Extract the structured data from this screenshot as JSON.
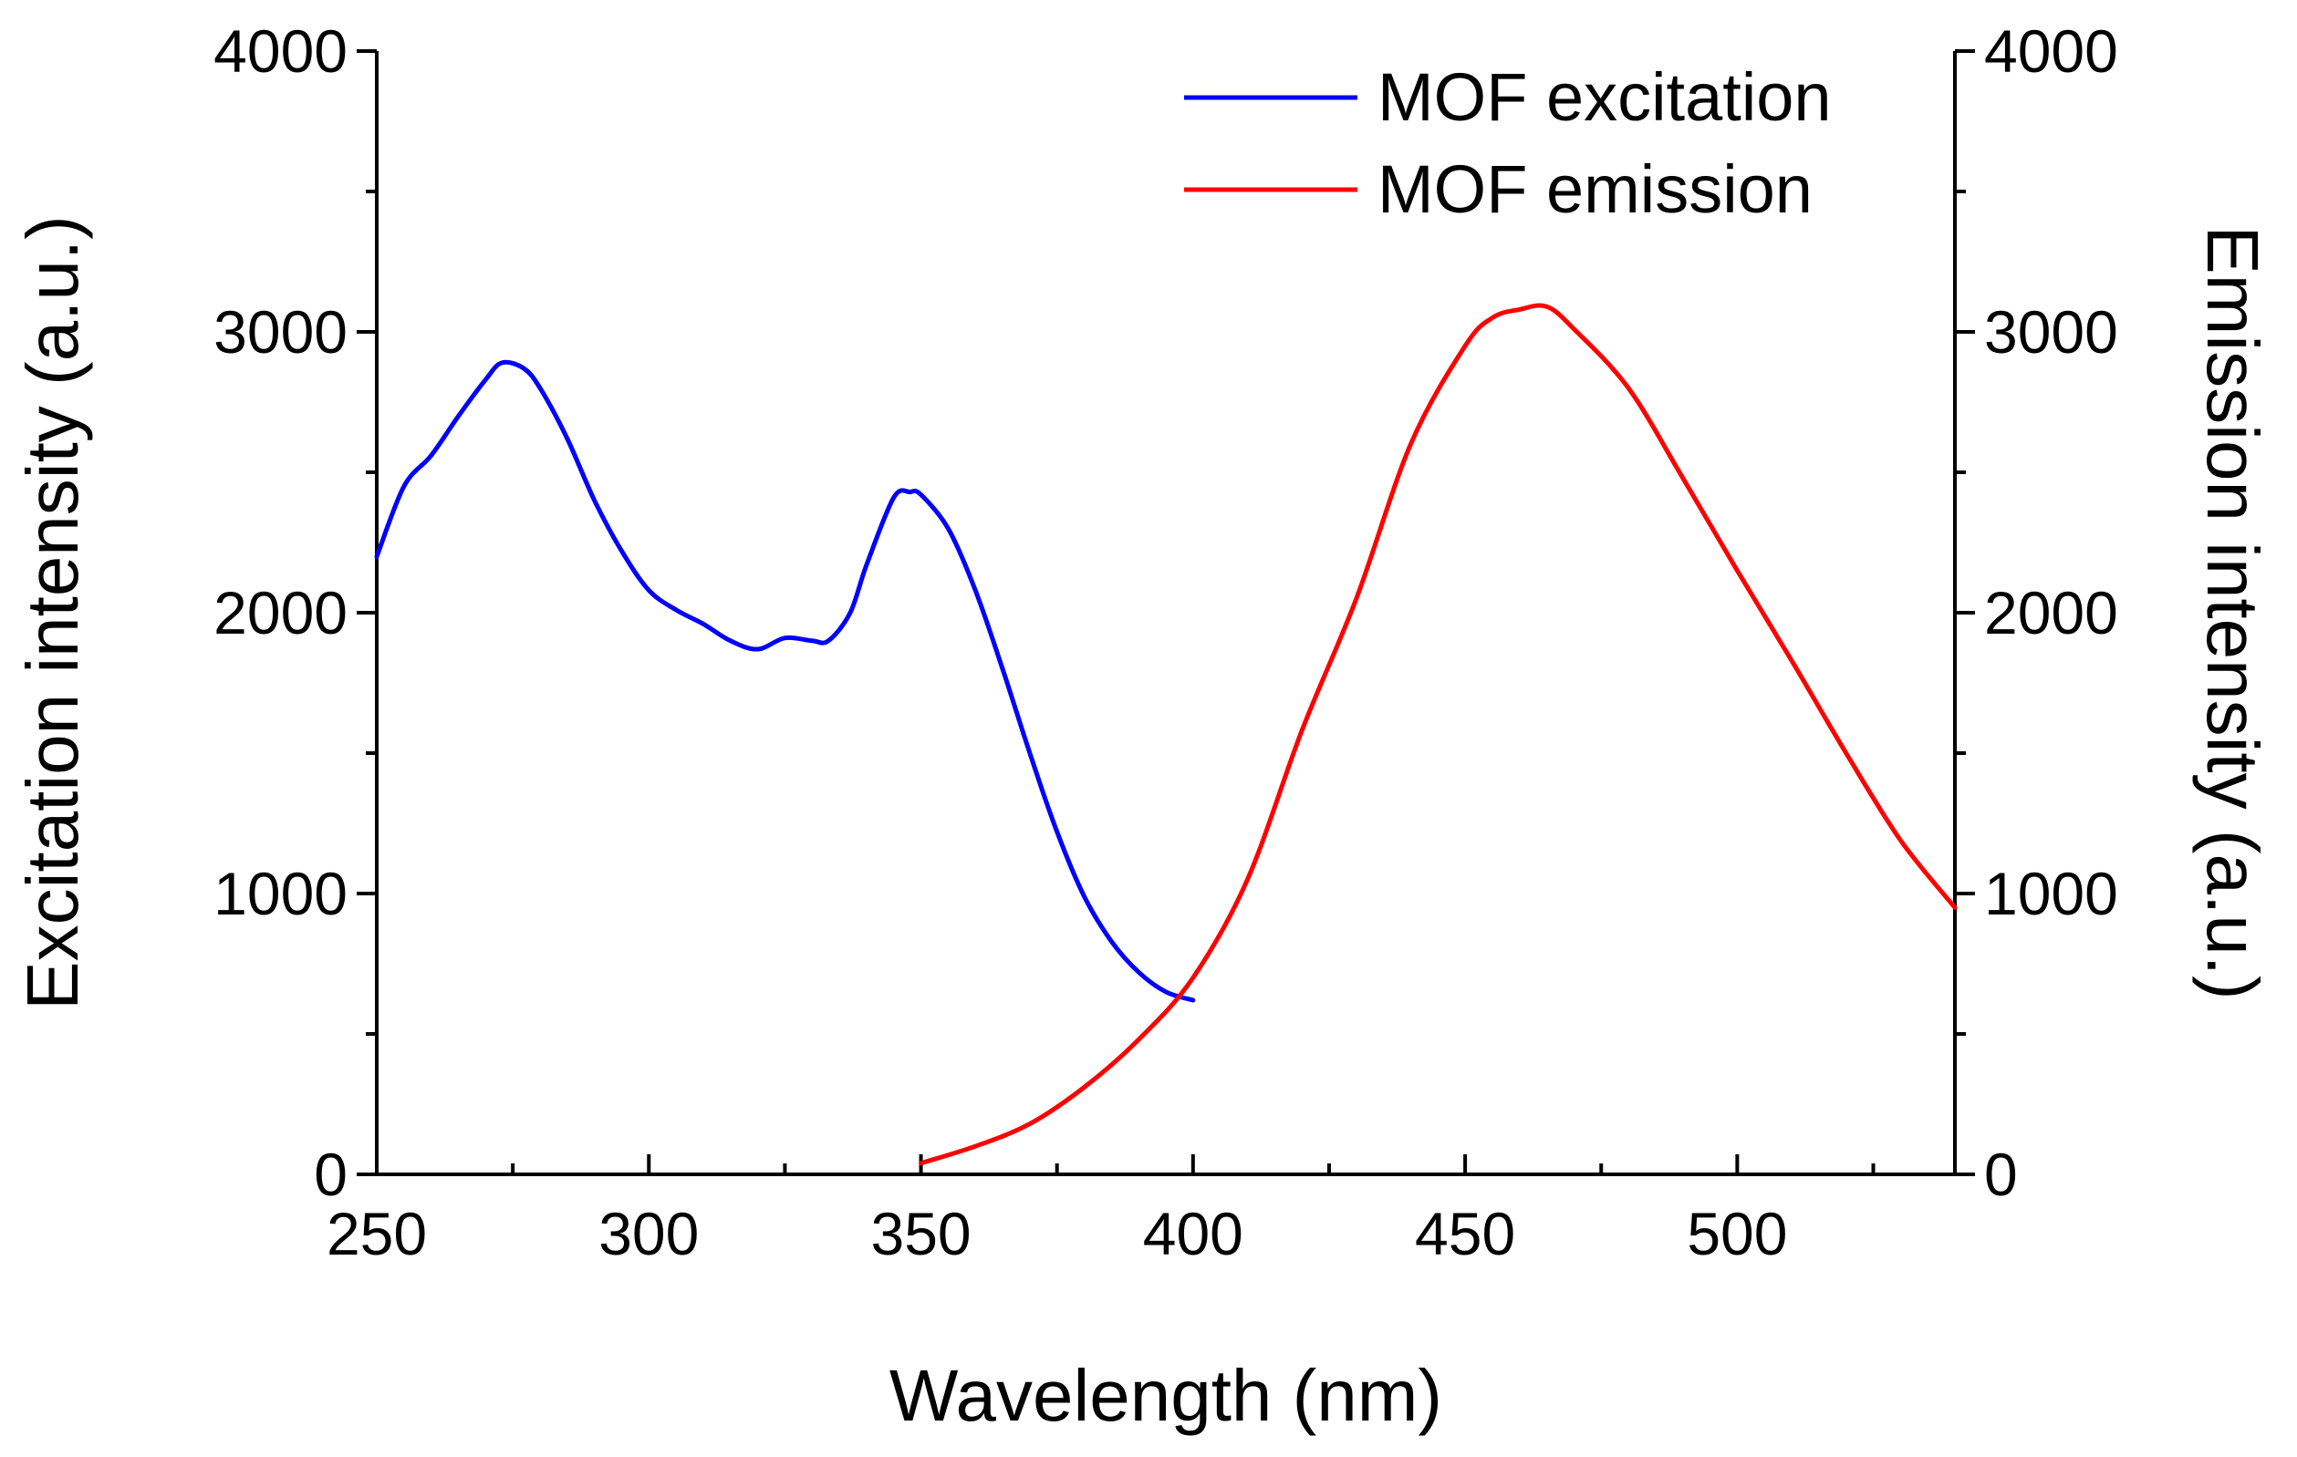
{
  "chart_data": {
    "type": "line",
    "title": "",
    "xlabel": "Wavelength (nm)",
    "ylabel_left": "Excitation intensity (a.u.)",
    "ylabel_right": "Emission intensity (a.u.)",
    "xlim": [
      250,
      540
    ],
    "ylim": [
      0,
      4000
    ],
    "x_ticks": [
      250,
      300,
      350,
      400,
      450,
      500
    ],
    "x_minor_step": 25,
    "y_ticks": [
      0,
      1000,
      2000,
      3000,
      4000
    ],
    "y_minor_step": 500,
    "x_tick_labels": [
      "250",
      "300",
      "350",
      "400",
      "450",
      "500"
    ],
    "y_tick_labels": [
      "0",
      "1000",
      "2000",
      "3000",
      "4000"
    ],
    "legend_position": "top-right",
    "grid": false,
    "series": [
      {
        "name": "MOF excitation",
        "color": "#0000ff",
        "axis": "left",
        "x": [
          250,
          255,
          260,
          265,
          270,
          273,
          277,
          280,
          285,
          290,
          295,
          300,
          305,
          310,
          315,
          320,
          325,
          330,
          333,
          337,
          340,
          345,
          348,
          350,
          355,
          360,
          365,
          370,
          375,
          380,
          385,
          390,
          395,
          400
        ],
        "y": [
          2200,
          2450,
          2560,
          2700,
          2830,
          2890,
          2870,
          2800,
          2620,
          2400,
          2220,
          2080,
          2010,
          1960,
          1900,
          1870,
          1910,
          1900,
          1900,
          2000,
          2170,
          2410,
          2430,
          2420,
          2300,
          2080,
          1800,
          1500,
          1220,
          990,
          830,
          720,
          650,
          620
        ]
      },
      {
        "name": "MOF emission",
        "color": "#ff0000",
        "axis": "right",
        "x": [
          350,
          360,
          370,
          380,
          390,
          400,
          410,
          420,
          430,
          440,
          450,
          455,
          460,
          465,
          470,
          480,
          490,
          500,
          510,
          520,
          530,
          540
        ],
        "y": [
          40,
          100,
          180,
          310,
          480,
          700,
          1050,
          1580,
          2050,
          2600,
          2950,
          3050,
          3080,
          3090,
          3010,
          2800,
          2480,
          2150,
          1830,
          1500,
          1190,
          950
        ]
      }
    ]
  }
}
